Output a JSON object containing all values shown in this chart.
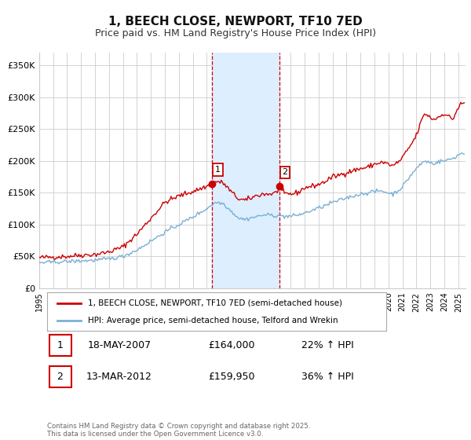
{
  "title": "1, BEECH CLOSE, NEWPORT, TF10 7ED",
  "subtitle": "Price paid vs. HM Land Registry's House Price Index (HPI)",
  "title_fontsize": 11,
  "subtitle_fontsize": 9,
  "background_color": "#ffffff",
  "plot_bg_color": "#ffffff",
  "grid_color": "#cccccc",
  "line1_color": "#cc0000",
  "line2_color": "#7ab0d4",
  "shaded_region_color": "#ddeeff",
  "dashed_line_color": "#cc0000",
  "sale1_date_num": 2007.38,
  "sale2_date_num": 2012.19,
  "sale1_price": 164000,
  "sale2_price": 159950,
  "sale1_label": "1",
  "sale2_label": "2",
  "legend1_label": "1, BEECH CLOSE, NEWPORT, TF10 7ED (semi-detached house)",
  "legend2_label": "HPI: Average price, semi-detached house, Telford and Wrekin",
  "table_row1": [
    "1",
    "18-MAY-2007",
    "£164,000",
    "22% ↑ HPI"
  ],
  "table_row2": [
    "2",
    "13-MAR-2012",
    "£159,950",
    "36% ↑ HPI"
  ],
  "footer": "Contains HM Land Registry data © Crown copyright and database right 2025.\nThis data is licensed under the Open Government Licence v3.0.",
  "ylim": [
    0,
    370000
  ],
  "yticks": [
    0,
    50000,
    100000,
    150000,
    200000,
    250000,
    300000,
    350000
  ],
  "ytick_labels": [
    "£0",
    "£50K",
    "£100K",
    "£150K",
    "£200K",
    "£250K",
    "£300K",
    "£350K"
  ],
  "xlim_start": 1995.0,
  "xlim_end": 2025.5,
  "xticks": [
    1995,
    1996,
    1997,
    1998,
    1999,
    2000,
    2001,
    2002,
    2003,
    2004,
    2005,
    2006,
    2007,
    2008,
    2009,
    2010,
    2011,
    2012,
    2013,
    2014,
    2015,
    2016,
    2017,
    2018,
    2019,
    2020,
    2021,
    2022,
    2023,
    2024,
    2025
  ]
}
